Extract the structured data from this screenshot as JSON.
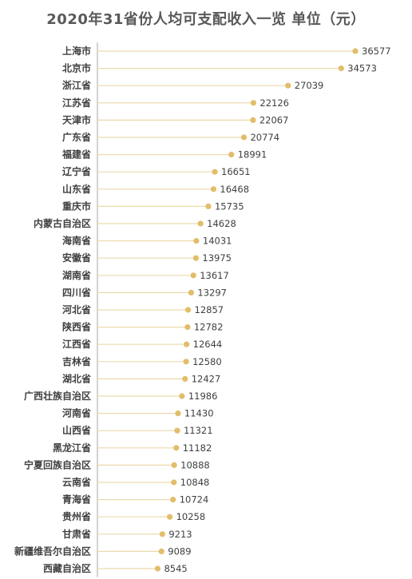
{
  "chart_data": {
    "type": "bar",
    "orientation": "horizontal",
    "style": "lollipop",
    "title": "2020年31省份人均可支配收入一览  单位（元）",
    "categories": [
      "上海市",
      "北京市",
      "浙江省",
      "江苏省",
      "天津市",
      "广东省",
      "福建省",
      "辽宁省",
      "山东省",
      "重庆市",
      "内蒙古自治区",
      "海南省",
      "安徽省",
      "湖南省",
      "四川省",
      "河北省",
      "陕西省",
      "江西省",
      "吉林省",
      "湖北省",
      "广西壮族自治区",
      "河南省",
      "山西省",
      "黑龙江省",
      "宁夏回族自治区",
      "云南省",
      "青海省",
      "贵州省",
      "甘肃省",
      "新疆维吾尔自治区",
      "西藏自治区"
    ],
    "values": [
      36577,
      34573,
      27039,
      22126,
      22067,
      20774,
      18991,
      16651,
      16468,
      15735,
      14628,
      14031,
      13975,
      13617,
      13297,
      12857,
      12782,
      12644,
      12580,
      12427,
      11986,
      11430,
      11321,
      11182,
      10888,
      10848,
      10724,
      10258,
      9213,
      9089,
      8545
    ],
    "xlim": [
      0,
      36577
    ],
    "grid": false,
    "colors": {
      "marker": "#e2bd6a",
      "stem": "#ecd9ad",
      "axis": "#a6a6a6",
      "title": "#595959"
    }
  }
}
